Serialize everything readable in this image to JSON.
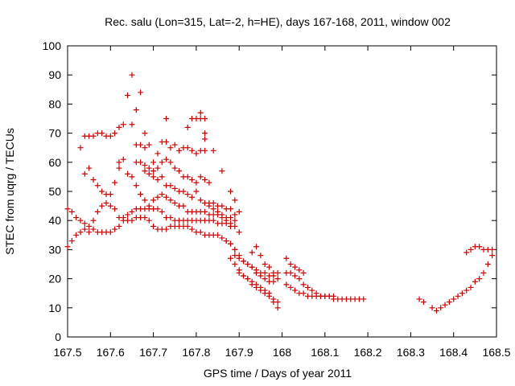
{
  "chart_data": {
    "type": "scatter",
    "title": "Rec. salu (Lon=315, Lat=-2, h=HE), days 167-168, 2011, window 002",
    "xlabel": "GPS time / Days of year 2011",
    "ylabel": "STEC from uqrg / TECUs",
    "xlim": [
      167.5,
      168.5
    ],
    "ylim": [
      0,
      100
    ],
    "x_ticks": [
      "167.5",
      "167.6",
      "167.7",
      "167.8",
      "167.9",
      "168",
      "168.1",
      "168.2",
      "168.3",
      "168.4",
      "168.5"
    ],
    "y_ticks": [
      "0",
      "10",
      "20",
      "30",
      "40",
      "50",
      "60",
      "70",
      "80",
      "90",
      "100"
    ],
    "marker": "plus",
    "color": "#cc0000",
    "grid": false,
    "legend": "none",
    "points": [
      [
        167.5,
        31
      ],
      [
        167.51,
        33
      ],
      [
        167.52,
        35
      ],
      [
        167.53,
        36
      ],
      [
        167.54,
        37
      ],
      [
        167.55,
        36
      ],
      [
        167.56,
        37
      ],
      [
        167.57,
        36
      ],
      [
        167.58,
        36
      ],
      [
        167.59,
        36
      ],
      [
        167.6,
        36
      ],
      [
        167.61,
        37
      ],
      [
        167.62,
        38
      ],
      [
        167.63,
        40
      ],
      [
        167.64,
        40
      ],
      [
        167.65,
        40
      ],
      [
        167.66,
        41
      ],
      [
        167.67,
        41
      ],
      [
        167.68,
        41
      ],
      [
        167.69,
        40
      ],
      [
        167.7,
        38
      ],
      [
        167.71,
        37
      ],
      [
        167.72,
        37
      ],
      [
        167.73,
        37
      ],
      [
        167.74,
        38
      ],
      [
        167.75,
        38
      ],
      [
        167.76,
        38
      ],
      [
        167.77,
        38
      ],
      [
        167.78,
        38
      ],
      [
        167.79,
        37
      ],
      [
        167.8,
        36
      ],
      [
        167.81,
        36
      ],
      [
        167.82,
        35
      ],
      [
        167.83,
        35
      ],
      [
        167.84,
        35
      ],
      [
        167.85,
        35
      ],
      [
        167.86,
        34
      ],
      [
        167.87,
        33
      ],
      [
        167.88,
        32
      ],
      [
        167.89,
        30
      ],
      [
        167.5,
        44
      ],
      [
        167.51,
        43
      ],
      [
        167.52,
        41
      ],
      [
        167.53,
        40
      ],
      [
        167.54,
        39
      ],
      [
        167.55,
        38
      ],
      [
        167.56,
        40
      ],
      [
        167.57,
        43
      ],
      [
        167.58,
        45
      ],
      [
        167.59,
        46
      ],
      [
        167.6,
        45
      ],
      [
        167.61,
        44
      ],
      [
        167.62,
        41
      ],
      [
        167.63,
        41
      ],
      [
        167.64,
        42
      ],
      [
        167.65,
        43
      ],
      [
        167.66,
        44
      ],
      [
        167.67,
        44
      ],
      [
        167.68,
        44
      ],
      [
        167.69,
        44
      ],
      [
        167.7,
        44
      ],
      [
        167.71,
        44
      ],
      [
        167.72,
        43
      ],
      [
        167.73,
        41
      ],
      [
        167.74,
        41
      ],
      [
        167.75,
        40
      ],
      [
        167.76,
        40
      ],
      [
        167.77,
        40
      ],
      [
        167.78,
        40
      ],
      [
        167.79,
        40
      ],
      [
        167.8,
        40
      ],
      [
        167.81,
        40
      ],
      [
        167.82,
        40
      ],
      [
        167.83,
        40
      ],
      [
        167.84,
        40
      ],
      [
        167.85,
        39
      ],
      [
        167.86,
        39
      ],
      [
        167.87,
        39
      ],
      [
        167.88,
        39
      ],
      [
        167.89,
        38
      ],
      [
        167.9,
        36
      ],
      [
        167.53,
        65
      ],
      [
        167.54,
        69
      ],
      [
        167.55,
        69
      ],
      [
        167.56,
        69
      ],
      [
        167.57,
        70
      ],
      [
        167.58,
        70
      ],
      [
        167.59,
        69
      ],
      [
        167.6,
        69
      ],
      [
        167.61,
        70
      ],
      [
        167.54,
        56
      ],
      [
        167.55,
        58
      ],
      [
        167.56,
        54
      ],
      [
        167.57,
        52
      ],
      [
        167.58,
        50
      ],
      [
        167.59,
        49
      ],
      [
        167.6,
        49
      ],
      [
        167.61,
        53
      ],
      [
        167.62,
        72
      ],
      [
        167.63,
        73
      ],
      [
        167.64,
        83
      ],
      [
        167.65,
        90
      ],
      [
        167.66,
        78
      ],
      [
        167.67,
        84
      ],
      [
        167.68,
        70
      ],
      [
        167.65,
        73
      ],
      [
        167.66,
        66
      ],
      [
        167.67,
        66
      ],
      [
        167.68,
        65
      ],
      [
        167.69,
        66
      ],
      [
        167.62,
        58
      ],
      [
        167.62,
        60
      ],
      [
        167.63,
        61
      ],
      [
        167.64,
        56
      ],
      [
        167.65,
        55
      ],
      [
        167.66,
        52
      ],
      [
        167.67,
        49
      ],
      [
        167.68,
        47
      ],
      [
        167.69,
        45
      ],
      [
        167.7,
        47
      ],
      [
        167.71,
        48
      ],
      [
        167.72,
        49
      ],
      [
        167.73,
        48
      ],
      [
        167.74,
        47
      ],
      [
        167.75,
        46
      ],
      [
        167.76,
        45
      ],
      [
        167.77,
        45
      ],
      [
        167.78,
        49
      ],
      [
        167.79,
        48
      ],
      [
        167.66,
        60
      ],
      [
        167.67,
        60
      ],
      [
        167.68,
        59
      ],
      [
        167.69,
        58
      ],
      [
        167.7,
        57
      ],
      [
        167.71,
        58
      ],
      [
        167.72,
        60
      ],
      [
        167.73,
        61
      ],
      [
        167.74,
        60
      ],
      [
        167.75,
        58
      ],
      [
        167.76,
        57
      ],
      [
        167.77,
        55
      ],
      [
        167.78,
        55
      ],
      [
        167.79,
        54
      ],
      [
        167.8,
        53
      ],
      [
        167.81,
        55
      ],
      [
        167.82,
        54
      ],
      [
        167.83,
        53
      ],
      [
        167.68,
        57
      ],
      [
        167.69,
        56
      ],
      [
        167.7,
        55
      ],
      [
        167.71,
        54
      ],
      [
        167.72,
        55
      ],
      [
        167.73,
        52
      ],
      [
        167.74,
        52
      ],
      [
        167.75,
        51
      ],
      [
        167.76,
        50
      ],
      [
        167.77,
        50
      ],
      [
        167.7,
        60
      ],
      [
        167.71,
        63
      ],
      [
        167.72,
        67
      ],
      [
        167.73,
        67
      ],
      [
        167.74,
        65
      ],
      [
        167.75,
        66
      ],
      [
        167.76,
        64
      ],
      [
        167.77,
        65
      ],
      [
        167.78,
        65
      ],
      [
        167.79,
        64
      ],
      [
        167.8,
        63
      ],
      [
        167.81,
        64
      ],
      [
        167.82,
        64
      ],
      [
        167.73,
        75
      ],
      [
        167.78,
        72
      ],
      [
        167.79,
        75
      ],
      [
        167.8,
        75
      ],
      [
        167.81,
        77
      ],
      [
        167.81,
        75
      ],
      [
        167.82,
        75
      ],
      [
        167.82,
        70
      ],
      [
        167.82,
        68
      ],
      [
        167.84,
        64
      ],
      [
        167.8,
        50
      ],
      [
        167.81,
        47
      ],
      [
        167.82,
        46
      ],
      [
        167.83,
        46
      ],
      [
        167.84,
        46
      ],
      [
        167.85,
        45
      ],
      [
        167.86,
        45
      ],
      [
        167.87,
        44
      ],
      [
        167.88,
        44
      ],
      [
        167.89,
        42
      ],
      [
        167.78,
        43
      ],
      [
        167.79,
        43
      ],
      [
        167.8,
        43
      ],
      [
        167.81,
        43
      ],
      [
        167.82,
        43
      ],
      [
        167.83,
        42
      ],
      [
        167.84,
        42
      ],
      [
        167.85,
        42
      ],
      [
        167.86,
        42
      ],
      [
        167.87,
        41
      ],
      [
        167.88,
        41
      ],
      [
        167.89,
        40
      ],
      [
        167.83,
        45
      ],
      [
        167.84,
        44
      ],
      [
        167.85,
        43
      ],
      [
        167.86,
        41
      ],
      [
        167.87,
        40
      ],
      [
        167.88,
        38
      ],
      [
        167.86,
        57
      ],
      [
        167.88,
        50
      ],
      [
        167.89,
        47
      ],
      [
        167.9,
        43
      ],
      [
        167.87,
        33
      ],
      [
        167.88,
        32
      ],
      [
        167.89,
        30
      ],
      [
        167.9,
        28
      ],
      [
        167.91,
        26
      ],
      [
        167.92,
        25
      ],
      [
        167.93,
        24
      ],
      [
        167.94,
        22
      ],
      [
        167.95,
        21
      ],
      [
        167.96,
        20
      ],
      [
        167.97,
        19
      ],
      [
        167.98,
        19
      ],
      [
        167.88,
        27
      ],
      [
        167.89,
        25
      ],
      [
        167.9,
        23
      ],
      [
        167.91,
        21
      ],
      [
        167.92,
        20
      ],
      [
        167.93,
        19
      ],
      [
        167.94,
        18
      ],
      [
        167.95,
        17
      ],
      [
        167.96,
        16
      ],
      [
        167.97,
        15
      ],
      [
        167.98,
        13
      ],
      [
        167.99,
        12
      ],
      [
        167.9,
        22
      ],
      [
        167.91,
        21
      ],
      [
        167.92,
        20
      ],
      [
        167.93,
        18
      ],
      [
        167.94,
        17
      ],
      [
        167.95,
        16
      ],
      [
        167.96,
        15
      ],
      [
        167.97,
        14
      ],
      [
        167.98,
        12
      ],
      [
        167.99,
        10
      ],
      [
        167.89,
        28
      ],
      [
        167.9,
        27
      ],
      [
        167.91,
        26
      ],
      [
        167.92,
        25
      ],
      [
        167.93,
        24
      ],
      [
        167.94,
        23
      ],
      [
        167.95,
        22
      ],
      [
        167.96,
        22
      ],
      [
        167.97,
        21
      ],
      [
        167.98,
        21
      ],
      [
        167.99,
        20
      ],
      [
        167.93,
        29
      ],
      [
        167.94,
        31
      ],
      [
        167.95,
        28
      ],
      [
        167.96,
        25
      ],
      [
        167.97,
        24
      ],
      [
        167.98,
        22
      ],
      [
        167.99,
        22
      ],
      [
        168.01,
        27
      ],
      [
        168.02,
        25
      ],
      [
        168.03,
        24
      ],
      [
        168.04,
        23
      ],
      [
        168.05,
        22
      ],
      [
        168.01,
        22
      ],
      [
        168.02,
        22
      ],
      [
        168.03,
        21
      ],
      [
        168.04,
        20
      ],
      [
        168.05,
        18
      ],
      [
        168.06,
        17
      ],
      [
        168.07,
        16
      ],
      [
        168.08,
        15
      ],
      [
        168.09,
        14
      ],
      [
        168.1,
        14
      ],
      [
        168.11,
        14
      ],
      [
        168.12,
        14
      ],
      [
        168.01,
        18
      ],
      [
        168.02,
        17
      ],
      [
        168.03,
        16
      ],
      [
        168.04,
        15
      ],
      [
        168.05,
        15
      ],
      [
        168.06,
        14
      ],
      [
        168.07,
        14
      ],
      [
        168.08,
        14
      ],
      [
        168.09,
        14
      ],
      [
        168.1,
        14
      ],
      [
        168.11,
        14
      ],
      [
        168.12,
        13
      ],
      [
        168.13,
        13
      ],
      [
        168.14,
        13
      ],
      [
        168.15,
        13
      ],
      [
        168.16,
        13
      ],
      [
        168.17,
        13
      ],
      [
        168.18,
        13
      ],
      [
        168.19,
        13
      ],
      [
        168.32,
        13
      ],
      [
        168.33,
        12
      ],
      [
        168.35,
        10
      ],
      [
        168.36,
        9
      ],
      [
        168.37,
        10
      ],
      [
        168.38,
        11
      ],
      [
        168.39,
        12
      ],
      [
        168.4,
        13
      ],
      [
        168.41,
        14
      ],
      [
        168.42,
        15
      ],
      [
        168.43,
        16
      ],
      [
        168.44,
        17
      ],
      [
        168.45,
        19
      ],
      [
        168.46,
        20
      ],
      [
        168.47,
        22
      ],
      [
        168.48,
        25
      ],
      [
        168.49,
        28
      ],
      [
        168.43,
        29
      ],
      [
        168.44,
        30
      ],
      [
        168.45,
        31
      ],
      [
        168.46,
        31
      ],
      [
        168.47,
        30
      ],
      [
        168.48,
        30
      ],
      [
        168.49,
        30
      ]
    ]
  }
}
